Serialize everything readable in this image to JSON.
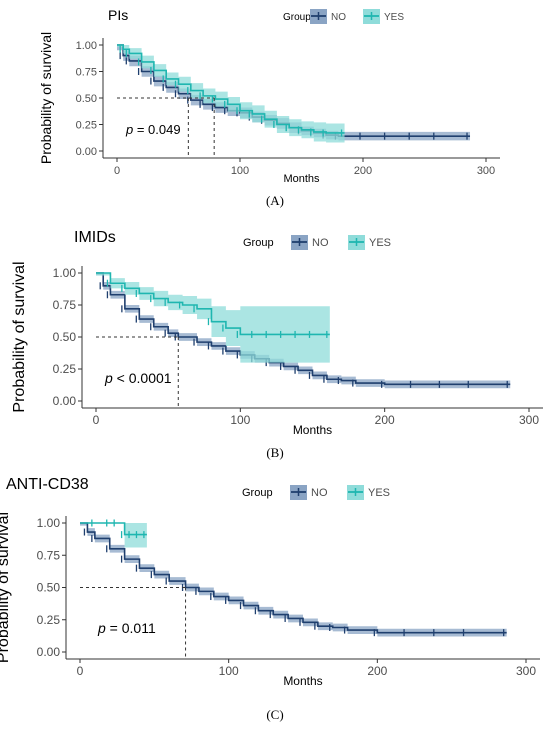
{
  "colors": {
    "no": "#1f3f6e",
    "no_band": "#8aa4c4",
    "yes": "#1fb6b0",
    "yes_band": "#8fdcda",
    "ref": "#333333"
  },
  "chart_data": [
    {
      "type": "line",
      "title": "PIs",
      "panel_label": "(A)",
      "xlabel": "Months",
      "ylabel": "Probability of survival",
      "xlim": [
        0,
        300
      ],
      "ylim": [
        0,
        1
      ],
      "x_ticks": [
        "0",
        "100",
        "200",
        "300"
      ],
      "y_ticks": [
        "0.00",
        "0.25",
        "0.50",
        "0.75",
        "1.00"
      ],
      "legend": {
        "title": "Group",
        "position": "top",
        "entries": [
          "NO",
          "YES"
        ]
      },
      "pvalue": "p = 0.049",
      "medians": [
        58,
        79
      ],
      "series": [
        {
          "name": "NO",
          "x": [
            0,
            5,
            10,
            20,
            30,
            40,
            50,
            60,
            70,
            80,
            90,
            100,
            110,
            120,
            130,
            140,
            150,
            160,
            170,
            180,
            200,
            220,
            240,
            260,
            287
          ],
          "y": [
            1.0,
            0.9,
            0.85,
            0.75,
            0.66,
            0.6,
            0.54,
            0.48,
            0.44,
            0.41,
            0.38,
            0.36,
            0.32,
            0.29,
            0.26,
            0.22,
            0.19,
            0.17,
            0.15,
            0.14,
            0.14,
            0.14,
            0.14,
            0.14,
            0.14
          ],
          "band": [
            0.05,
            0.05,
            0.05,
            0.05,
            0.05,
            0.05,
            0.05,
            0.05,
            0.05,
            0.05,
            0.05,
            0.05,
            0.05,
            0.05,
            0.05,
            0.05,
            0.04,
            0.04,
            0.04,
            0.04,
            0.04,
            0.04,
            0.04,
            0.04,
            0.04
          ]
        },
        {
          "name": "YES",
          "x": [
            0,
            5,
            10,
            20,
            30,
            40,
            50,
            60,
            70,
            80,
            90,
            100,
            110,
            120,
            130,
            140,
            150,
            160,
            170,
            185
          ],
          "y": [
            1.0,
            0.96,
            0.92,
            0.84,
            0.76,
            0.68,
            0.63,
            0.57,
            0.52,
            0.49,
            0.44,
            0.38,
            0.35,
            0.3,
            0.25,
            0.22,
            0.2,
            0.18,
            0.17,
            0.17
          ],
          "band": [
            0.02,
            0.04,
            0.05,
            0.06,
            0.06,
            0.06,
            0.07,
            0.07,
            0.07,
            0.07,
            0.07,
            0.08,
            0.08,
            0.08,
            0.08,
            0.08,
            0.08,
            0.09,
            0.09,
            0.09
          ]
        }
      ]
    },
    {
      "type": "line",
      "title": "IMIDs",
      "panel_label": "(B)",
      "xlabel": "Months",
      "ylabel": "Probability of survival",
      "xlim": [
        0,
        300
      ],
      "ylim": [
        0,
        1
      ],
      "x_ticks": [
        "0",
        "100",
        "200",
        "300"
      ],
      "y_ticks": [
        "0.00",
        "0.25",
        "0.50",
        "0.75",
        "1.00"
      ],
      "legend": {
        "title": "Group",
        "position": "top",
        "entries": [
          "NO",
          "YES"
        ]
      },
      "pvalue": "p < 0.0001",
      "medians": [
        57
      ],
      "series": [
        {
          "name": "NO",
          "x": [
            0,
            5,
            10,
            20,
            30,
            40,
            50,
            57,
            70,
            80,
            90,
            100,
            110,
            120,
            130,
            140,
            150,
            160,
            170,
            180,
            200,
            220,
            240,
            260,
            287
          ],
          "y": [
            1.0,
            0.9,
            0.83,
            0.72,
            0.64,
            0.58,
            0.53,
            0.5,
            0.46,
            0.43,
            0.39,
            0.36,
            0.33,
            0.3,
            0.27,
            0.24,
            0.2,
            0.17,
            0.16,
            0.14,
            0.13,
            0.13,
            0.13,
            0.13,
            0.13
          ],
          "band": [
            0.02,
            0.03,
            0.03,
            0.03,
            0.03,
            0.03,
            0.03,
            0.03,
            0.03,
            0.03,
            0.03,
            0.03,
            0.03,
            0.03,
            0.03,
            0.03,
            0.03,
            0.03,
            0.03,
            0.03,
            0.03,
            0.03,
            0.03,
            0.03,
            0.03
          ]
        },
        {
          "name": "YES",
          "x": [
            0,
            10,
            20,
            30,
            40,
            50,
            60,
            70,
            80,
            90,
            100,
            110,
            120,
            130,
            140,
            150,
            162
          ],
          "y": [
            1.0,
            0.92,
            0.88,
            0.84,
            0.8,
            0.77,
            0.75,
            0.72,
            0.62,
            0.57,
            0.52,
            0.52,
            0.52,
            0.52,
            0.52,
            0.52,
            0.52
          ],
          "band": [
            0.02,
            0.04,
            0.05,
            0.05,
            0.06,
            0.06,
            0.07,
            0.08,
            0.12,
            0.14,
            0.22,
            0.22,
            0.22,
            0.22,
            0.22,
            0.22,
            0.22
          ]
        }
      ]
    },
    {
      "type": "line",
      "title": "ANTI-CD38",
      "panel_label": "(C)",
      "xlabel": "Months",
      "ylabel": "Probability of survival",
      "xlim": [
        0,
        300
      ],
      "ylim": [
        0,
        1
      ],
      "x_ticks": [
        "0",
        "100",
        "200",
        "300"
      ],
      "y_ticks": [
        "0.00",
        "0.25",
        "0.50",
        "0.75",
        "1.00"
      ],
      "legend": {
        "title": "Group",
        "position": "top",
        "entries": [
          "NO",
          "YES"
        ]
      },
      "pvalue": "p = 0.011",
      "medians": [
        71
      ],
      "series": [
        {
          "name": "NO",
          "x": [
            0,
            5,
            10,
            20,
            30,
            40,
            50,
            60,
            71,
            80,
            90,
            100,
            110,
            120,
            130,
            140,
            150,
            160,
            170,
            180,
            200,
            220,
            240,
            260,
            287
          ],
          "y": [
            1.0,
            0.93,
            0.88,
            0.8,
            0.72,
            0.65,
            0.6,
            0.55,
            0.5,
            0.47,
            0.43,
            0.4,
            0.36,
            0.32,
            0.29,
            0.26,
            0.23,
            0.2,
            0.19,
            0.17,
            0.15,
            0.15,
            0.15,
            0.15,
            0.15
          ],
          "band": [
            0.02,
            0.03,
            0.03,
            0.03,
            0.03,
            0.03,
            0.03,
            0.03,
            0.03,
            0.03,
            0.03,
            0.03,
            0.03,
            0.03,
            0.03,
            0.03,
            0.03,
            0.03,
            0.03,
            0.03,
            0.03,
            0.03,
            0.03,
            0.03,
            0.03
          ]
        },
        {
          "name": "YES",
          "x": [
            0,
            10,
            20,
            25,
            30,
            35,
            40,
            45
          ],
          "y": [
            1.0,
            1.0,
            1.0,
            1.0,
            0.91,
            0.91,
            0.91,
            0.91
          ],
          "band": [
            0.0,
            0.0,
            0.0,
            0.0,
            0.1,
            0.1,
            0.1,
            0.1
          ]
        }
      ]
    }
  ]
}
